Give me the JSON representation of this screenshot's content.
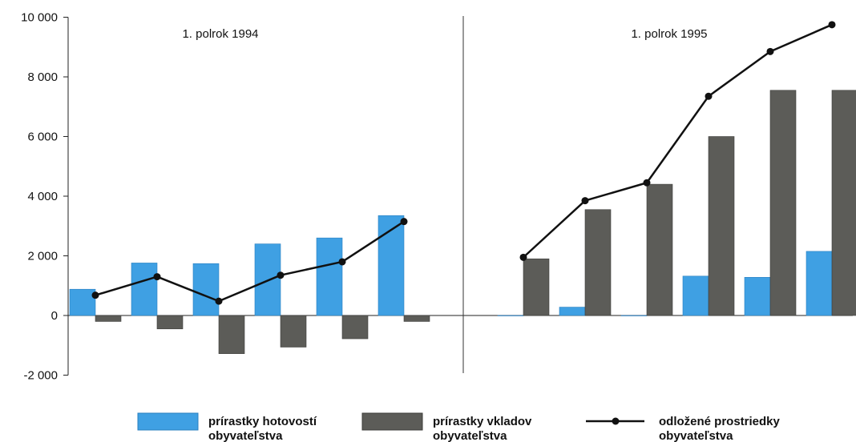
{
  "chart_data": {
    "type": "bar",
    "ylim": [
      -2000,
      10000
    ],
    "yticks": [
      -2000,
      0,
      2000,
      4000,
      6000,
      8000,
      10000
    ],
    "ytick_labels": [
      "-2 000",
      "0",
      "2 000",
      "4 000",
      "6 000",
      "8 000",
      "10 000"
    ],
    "grid": false,
    "legend_position": "bottom",
    "periods": [
      {
        "label": "1. polrok 1994",
        "hotovosti": [
          880,
          1760,
          1740,
          2400,
          2600,
          3350
        ],
        "vklady": [
          -200,
          -450,
          -1280,
          -1060,
          -780,
          -200
        ],
        "odlozene": [
          680,
          1300,
          480,
          1350,
          1800,
          3150
        ]
      },
      {
        "label": "1. polrok 1995",
        "hotovosti": [
          0,
          280,
          0,
          1320,
          1280,
          2150
        ],
        "vklady": [
          1900,
          3550,
          4400,
          6000,
          7550,
          7550
        ],
        "odlozene": [
          1950,
          3850,
          4450,
          7350,
          8850,
          9750
        ]
      }
    ],
    "series": [
      {
        "key": "hotovosti",
        "name": "prírastky hotovostí obyvateľstva",
        "type": "bar",
        "color": "#3fa0e3"
      },
      {
        "key": "vklady",
        "name": "prírastky vkladov obyvateľstva",
        "type": "bar",
        "color": "#5c5c58"
      },
      {
        "key": "odlozene",
        "name": "odložené prostriedky obyvateľstva",
        "type": "line",
        "color": "#111111"
      }
    ]
  },
  "legend": [
    {
      "line1": "prírastky hotovostí",
      "line2": "obyvateľstva"
    },
    {
      "line1": "prírastky vkladov",
      "line2": "obyvateľstva"
    },
    {
      "line1": "odložené prostriedky",
      "line2": "obyvateľstva"
    }
  ]
}
